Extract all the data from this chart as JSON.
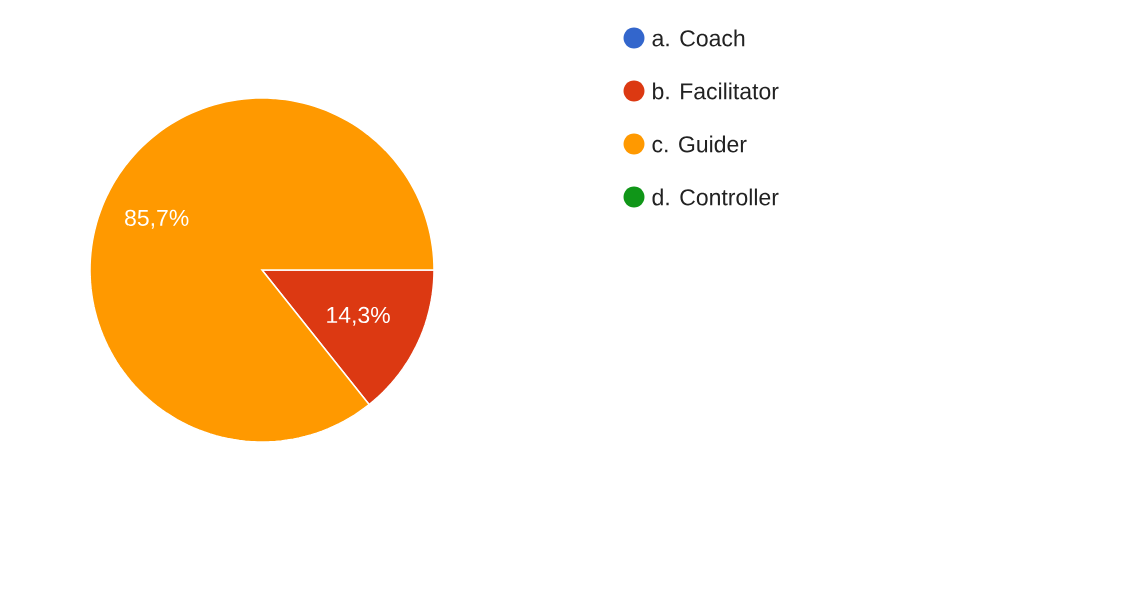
{
  "chart_data": {
    "type": "pie",
    "categories": [
      "a. Coach",
      "b. Facilitator",
      "c. Guider",
      "d. Controller"
    ],
    "values": [
      0,
      14.3,
      85.7,
      0
    ],
    "colors": [
      "#3366cc",
      "#dc3912",
      "#ff9900",
      "#109618"
    ],
    "value_labels": [
      null,
      "14,3%",
      "85,7%",
      null
    ],
    "legend": "top right"
  }
}
